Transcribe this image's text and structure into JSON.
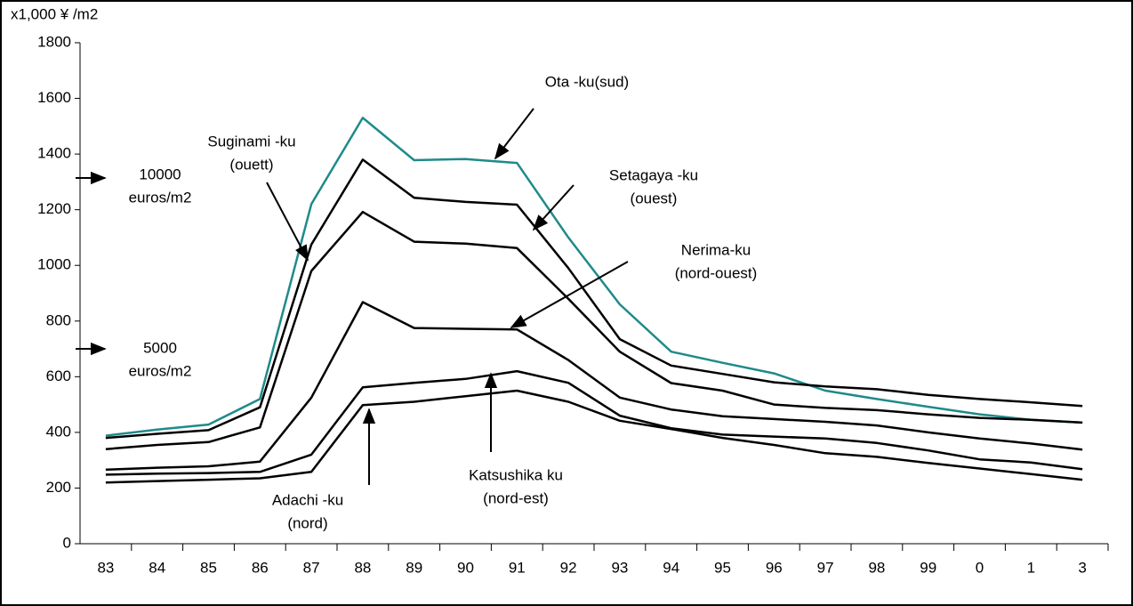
{
  "chart_data": {
    "type": "line",
    "y_label": "x1,000 ¥ /m2",
    "categories": [
      "83",
      "84",
      "85",
      "86",
      "87",
      "88",
      "89",
      "90",
      "91",
      "92",
      "93",
      "94",
      "95",
      "96",
      "97",
      "98",
      "99",
      "0",
      "1",
      "3"
    ],
    "series": [
      {
        "color": "#1f8a8a",
        "values": [
          388,
          410,
          428,
          520,
          1220,
          1530,
          1378,
          1382,
          1368,
          1100,
          860,
          690,
          650,
          612,
          550,
          520,
          492,
          465,
          445,
          435
        ]
      },
      {
        "color": "#000000",
        "values": [
          380,
          395,
          408,
          490,
          1075,
          1380,
          1243,
          1228,
          1218,
          990,
          735,
          640,
          610,
          580,
          565,
          555,
          535,
          520,
          508,
          495
        ]
      },
      {
        "color": "#000000",
        "values": [
          340,
          355,
          365,
          418,
          980,
          1192,
          1085,
          1078,
          1062,
          880,
          690,
          577,
          550,
          500,
          488,
          480,
          465,
          452,
          445,
          435
        ]
      },
      {
        "color": "#000000",
        "values": [
          266,
          273,
          278,
          295,
          525,
          868,
          775,
          772,
          770,
          660,
          525,
          482,
          458,
          448,
          438,
          425,
          400,
          378,
          360,
          338
        ]
      },
      {
        "color": "#000000",
        "values": [
          248,
          252,
          254,
          258,
          320,
          562,
          578,
          592,
          620,
          578,
          460,
          415,
          392,
          385,
          378,
          362,
          335,
          303,
          292,
          268
        ]
      },
      {
        "color": "#000000",
        "values": [
          220,
          225,
          230,
          235,
          258,
          498,
          510,
          530,
          550,
          510,
          442,
          412,
          380,
          355,
          325,
          312,
          290,
          270,
          250,
          230
        ]
      }
    ],
    "annotations": [
      {
        "lines": [
          "Ota -ku(sud)"
        ]
      },
      {
        "lines": [
          "Suginami -ku",
          "(ouett)"
        ]
      },
      {
        "lines": [
          "Setagaya -ku",
          "(ouest)"
        ]
      },
      {
        "lines": [
          "Nerima-ku",
          "(nord-ouest)"
        ]
      },
      {
        "lines": [
          "Katsushika ku",
          "(nord-est)"
        ]
      },
      {
        "lines": [
          "Adachi -ku",
          "(nord)"
        ]
      },
      {
        "lines": [
          "10000",
          "euros/m2"
        ]
      },
      {
        "lines": [
          "5000",
          "euros/m2"
        ]
      }
    ],
    "ylim": [
      0,
      1800
    ],
    "yticks": [
      0,
      200,
      400,
      600,
      800,
      1000,
      1200,
      1400,
      1600,
      1800
    ]
  }
}
